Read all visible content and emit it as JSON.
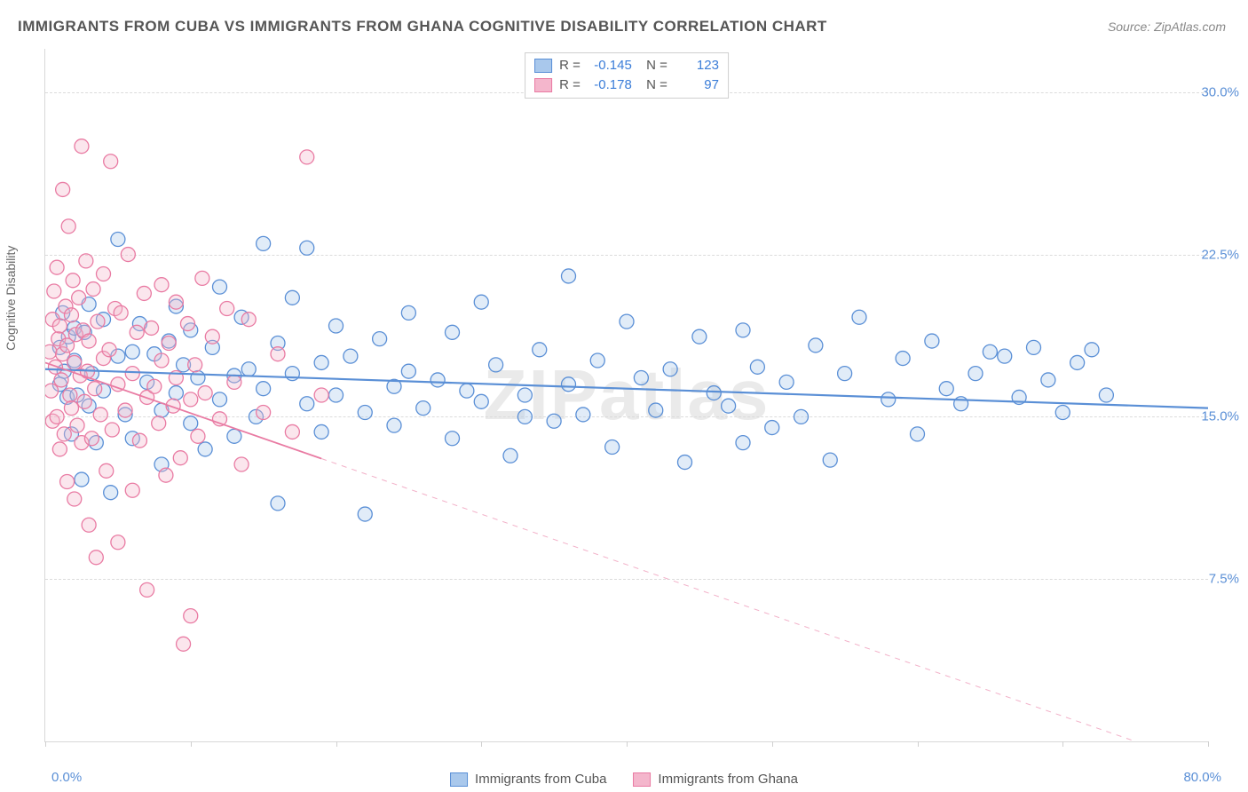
{
  "title": "IMMIGRANTS FROM CUBA VS IMMIGRANTS FROM GHANA COGNITIVE DISABILITY CORRELATION CHART",
  "source": "Source: ZipAtlas.com",
  "watermark": "ZIPatlas",
  "chart": {
    "type": "scatter",
    "xlim": [
      0,
      80
    ],
    "ylim": [
      0,
      32
    ],
    "yticks": [
      7.5,
      15.0,
      22.5,
      30.0
    ],
    "ytick_labels": [
      "7.5%",
      "15.0%",
      "22.5%",
      "30.0%"
    ],
    "xticks": [
      0,
      10,
      20,
      30,
      40,
      50,
      60,
      70,
      80
    ],
    "x_min_label": "0.0%",
    "x_max_label": "80.0%",
    "yaxis_title": "Cognitive Disability",
    "background_color": "#ffffff",
    "grid_color": "#dcdcdc",
    "marker_radius": 8,
    "marker_fill_opacity": 0.35,
    "marker_stroke_width": 1.3,
    "series": [
      {
        "name": "Immigrants from Cuba",
        "color_stroke": "#5a8fd6",
        "color_fill": "#a9c8ec",
        "R": "-0.145",
        "N": "123",
        "trend": {
          "x1": 0,
          "y1": 17.2,
          "x2": 80,
          "y2": 15.4,
          "solid_until_x": 80,
          "stroke_width": 2.2
        },
        "points": [
          [
            1,
            18.2
          ],
          [
            1,
            16.5
          ],
          [
            1.2,
            19.8
          ],
          [
            1.3,
            17.1
          ],
          [
            1.5,
            15.9
          ],
          [
            1.6,
            18.7
          ],
          [
            1.8,
            14.2
          ],
          [
            2,
            17.6
          ],
          [
            2,
            19.1
          ],
          [
            2.2,
            16.0
          ],
          [
            2.5,
            12.1
          ],
          [
            2.7,
            18.9
          ],
          [
            3,
            15.5
          ],
          [
            3,
            20.2
          ],
          [
            3.2,
            17.0
          ],
          [
            3.5,
            13.8
          ],
          [
            4,
            16.2
          ],
          [
            4,
            19.5
          ],
          [
            4.5,
            11.5
          ],
          [
            5,
            23.2
          ],
          [
            5,
            17.8
          ],
          [
            5.5,
            15.1
          ],
          [
            6,
            18.0
          ],
          [
            6,
            14.0
          ],
          [
            6.5,
            19.3
          ],
          [
            7,
            16.6
          ],
          [
            7.5,
            17.9
          ],
          [
            8,
            15.3
          ],
          [
            8,
            12.8
          ],
          [
            8.5,
            18.5
          ],
          [
            9,
            20.1
          ],
          [
            9,
            16.1
          ],
          [
            9.5,
            17.4
          ],
          [
            10,
            14.7
          ],
          [
            10,
            19.0
          ],
          [
            10.5,
            16.8
          ],
          [
            11,
            13.5
          ],
          [
            11.5,
            18.2
          ],
          [
            12,
            15.8
          ],
          [
            12,
            21.0
          ],
          [
            13,
            16.9
          ],
          [
            13,
            14.1
          ],
          [
            13.5,
            19.6
          ],
          [
            14,
            17.2
          ],
          [
            14.5,
            15.0
          ],
          [
            15,
            23.0
          ],
          [
            15,
            16.3
          ],
          [
            16,
            18.4
          ],
          [
            16,
            11.0
          ],
          [
            17,
            17.0
          ],
          [
            17,
            20.5
          ],
          [
            18,
            15.6
          ],
          [
            18,
            22.8
          ],
          [
            19,
            17.5
          ],
          [
            19,
            14.3
          ],
          [
            20,
            19.2
          ],
          [
            20,
            16.0
          ],
          [
            21,
            17.8
          ],
          [
            22,
            15.2
          ],
          [
            22,
            10.5
          ],
          [
            23,
            18.6
          ],
          [
            24,
            16.4
          ],
          [
            24,
            14.6
          ],
          [
            25,
            19.8
          ],
          [
            25,
            17.1
          ],
          [
            26,
            15.4
          ],
          [
            27,
            16.7
          ],
          [
            28,
            14.0
          ],
          [
            28,
            18.9
          ],
          [
            29,
            16.2
          ],
          [
            30,
            20.3
          ],
          [
            30,
            15.7
          ],
          [
            31,
            17.4
          ],
          [
            32,
            13.2
          ],
          [
            33,
            16.0
          ],
          [
            33,
            15.0
          ],
          [
            34,
            18.1
          ],
          [
            35,
            14.8
          ],
          [
            36,
            21.5
          ],
          [
            36,
            16.5
          ],
          [
            37,
            15.1
          ],
          [
            38,
            17.6
          ],
          [
            39,
            13.6
          ],
          [
            40,
            19.4
          ],
          [
            41,
            16.8
          ],
          [
            42,
            15.3
          ],
          [
            43,
            17.2
          ],
          [
            44,
            12.9
          ],
          [
            45,
            18.7
          ],
          [
            46,
            16.1
          ],
          [
            47,
            15.5
          ],
          [
            48,
            19.0
          ],
          [
            48,
            13.8
          ],
          [
            49,
            17.3
          ],
          [
            50,
            14.5
          ],
          [
            51,
            16.6
          ],
          [
            52,
            15.0
          ],
          [
            53,
            18.3
          ],
          [
            54,
            13.0
          ],
          [
            55,
            17.0
          ],
          [
            56,
            19.6
          ],
          [
            58,
            15.8
          ],
          [
            59,
            17.7
          ],
          [
            60,
            14.2
          ],
          [
            61,
            18.5
          ],
          [
            62,
            16.3
          ],
          [
            63,
            15.6
          ],
          [
            64,
            17.0
          ],
          [
            65,
            18.0
          ],
          [
            66,
            17.8
          ],
          [
            67,
            15.9
          ],
          [
            68,
            18.2
          ],
          [
            69,
            16.7
          ],
          [
            70,
            15.2
          ],
          [
            71,
            17.5
          ],
          [
            72,
            18.1
          ],
          [
            73,
            16.0
          ]
        ]
      },
      {
        "name": "Immigrants from Ghana",
        "color_stroke": "#e97ba3",
        "color_fill": "#f4b6cc",
        "R": "-0.178",
        "N": "97",
        "trend": {
          "x1": 0,
          "y1": 17.5,
          "x2": 75,
          "y2": 0.0,
          "solid_until_x": 19,
          "stroke_width": 1.8
        },
        "points": [
          [
            0.3,
            18.0
          ],
          [
            0.4,
            16.2
          ],
          [
            0.5,
            19.5
          ],
          [
            0.5,
            14.8
          ],
          [
            0.6,
            20.8
          ],
          [
            0.7,
            17.3
          ],
          [
            0.8,
            15.0
          ],
          [
            0.8,
            21.9
          ],
          [
            0.9,
            18.6
          ],
          [
            1.0,
            13.5
          ],
          [
            1.0,
            19.2
          ],
          [
            1.1,
            16.7
          ],
          [
            1.2,
            25.5
          ],
          [
            1.2,
            17.9
          ],
          [
            1.3,
            14.2
          ],
          [
            1.4,
            20.1
          ],
          [
            1.5,
            18.3
          ],
          [
            1.5,
            12.0
          ],
          [
            1.6,
            23.8
          ],
          [
            1.7,
            16.0
          ],
          [
            1.8,
            19.7
          ],
          [
            1.8,
            15.4
          ],
          [
            1.9,
            21.3
          ],
          [
            2.0,
            17.5
          ],
          [
            2.0,
            11.2
          ],
          [
            2.1,
            18.8
          ],
          [
            2.2,
            14.6
          ],
          [
            2.3,
            20.5
          ],
          [
            2.4,
            16.9
          ],
          [
            2.5,
            27.5
          ],
          [
            2.5,
            13.8
          ],
          [
            2.6,
            19.0
          ],
          [
            2.7,
            15.7
          ],
          [
            2.8,
            22.2
          ],
          [
            2.9,
            17.1
          ],
          [
            3.0,
            10.0
          ],
          [
            3.0,
            18.5
          ],
          [
            3.2,
            14.0
          ],
          [
            3.3,
            20.9
          ],
          [
            3.4,
            16.3
          ],
          [
            3.5,
            8.5
          ],
          [
            3.6,
            19.4
          ],
          [
            3.8,
            15.1
          ],
          [
            4.0,
            21.6
          ],
          [
            4.0,
            17.7
          ],
          [
            4.2,
            12.5
          ],
          [
            4.4,
            18.1
          ],
          [
            4.5,
            26.8
          ],
          [
            4.6,
            14.4
          ],
          [
            4.8,
            20.0
          ],
          [
            5.0,
            16.5
          ],
          [
            5.0,
            9.2
          ],
          [
            5.2,
            19.8
          ],
          [
            5.5,
            15.3
          ],
          [
            5.7,
            22.5
          ],
          [
            6.0,
            17.0
          ],
          [
            6.0,
            11.6
          ],
          [
            6.3,
            18.9
          ],
          [
            6.5,
            13.9
          ],
          [
            6.8,
            20.7
          ],
          [
            7.0,
            15.9
          ],
          [
            7.0,
            7.0
          ],
          [
            7.3,
            19.1
          ],
          [
            7.5,
            16.4
          ],
          [
            7.8,
            14.7
          ],
          [
            8.0,
            21.1
          ],
          [
            8.0,
            17.6
          ],
          [
            8.3,
            12.3
          ],
          [
            8.5,
            18.4
          ],
          [
            8.8,
            15.5
          ],
          [
            9.0,
            20.3
          ],
          [
            9.0,
            16.8
          ],
          [
            9.3,
            13.1
          ],
          [
            9.5,
            4.5
          ],
          [
            9.8,
            19.3
          ],
          [
            10.0,
            15.8
          ],
          [
            10.0,
            5.8
          ],
          [
            10.3,
            17.4
          ],
          [
            10.5,
            14.1
          ],
          [
            10.8,
            21.4
          ],
          [
            11.0,
            16.1
          ],
          [
            11.5,
            18.7
          ],
          [
            12.0,
            14.9
          ],
          [
            12.5,
            20.0
          ],
          [
            13.0,
            16.6
          ],
          [
            13.5,
            12.8
          ],
          [
            14.0,
            19.5
          ],
          [
            15.0,
            15.2
          ],
          [
            16.0,
            17.9
          ],
          [
            17.0,
            14.3
          ],
          [
            18.0,
            27.0
          ],
          [
            19.0,
            16.0
          ]
        ]
      }
    ]
  }
}
